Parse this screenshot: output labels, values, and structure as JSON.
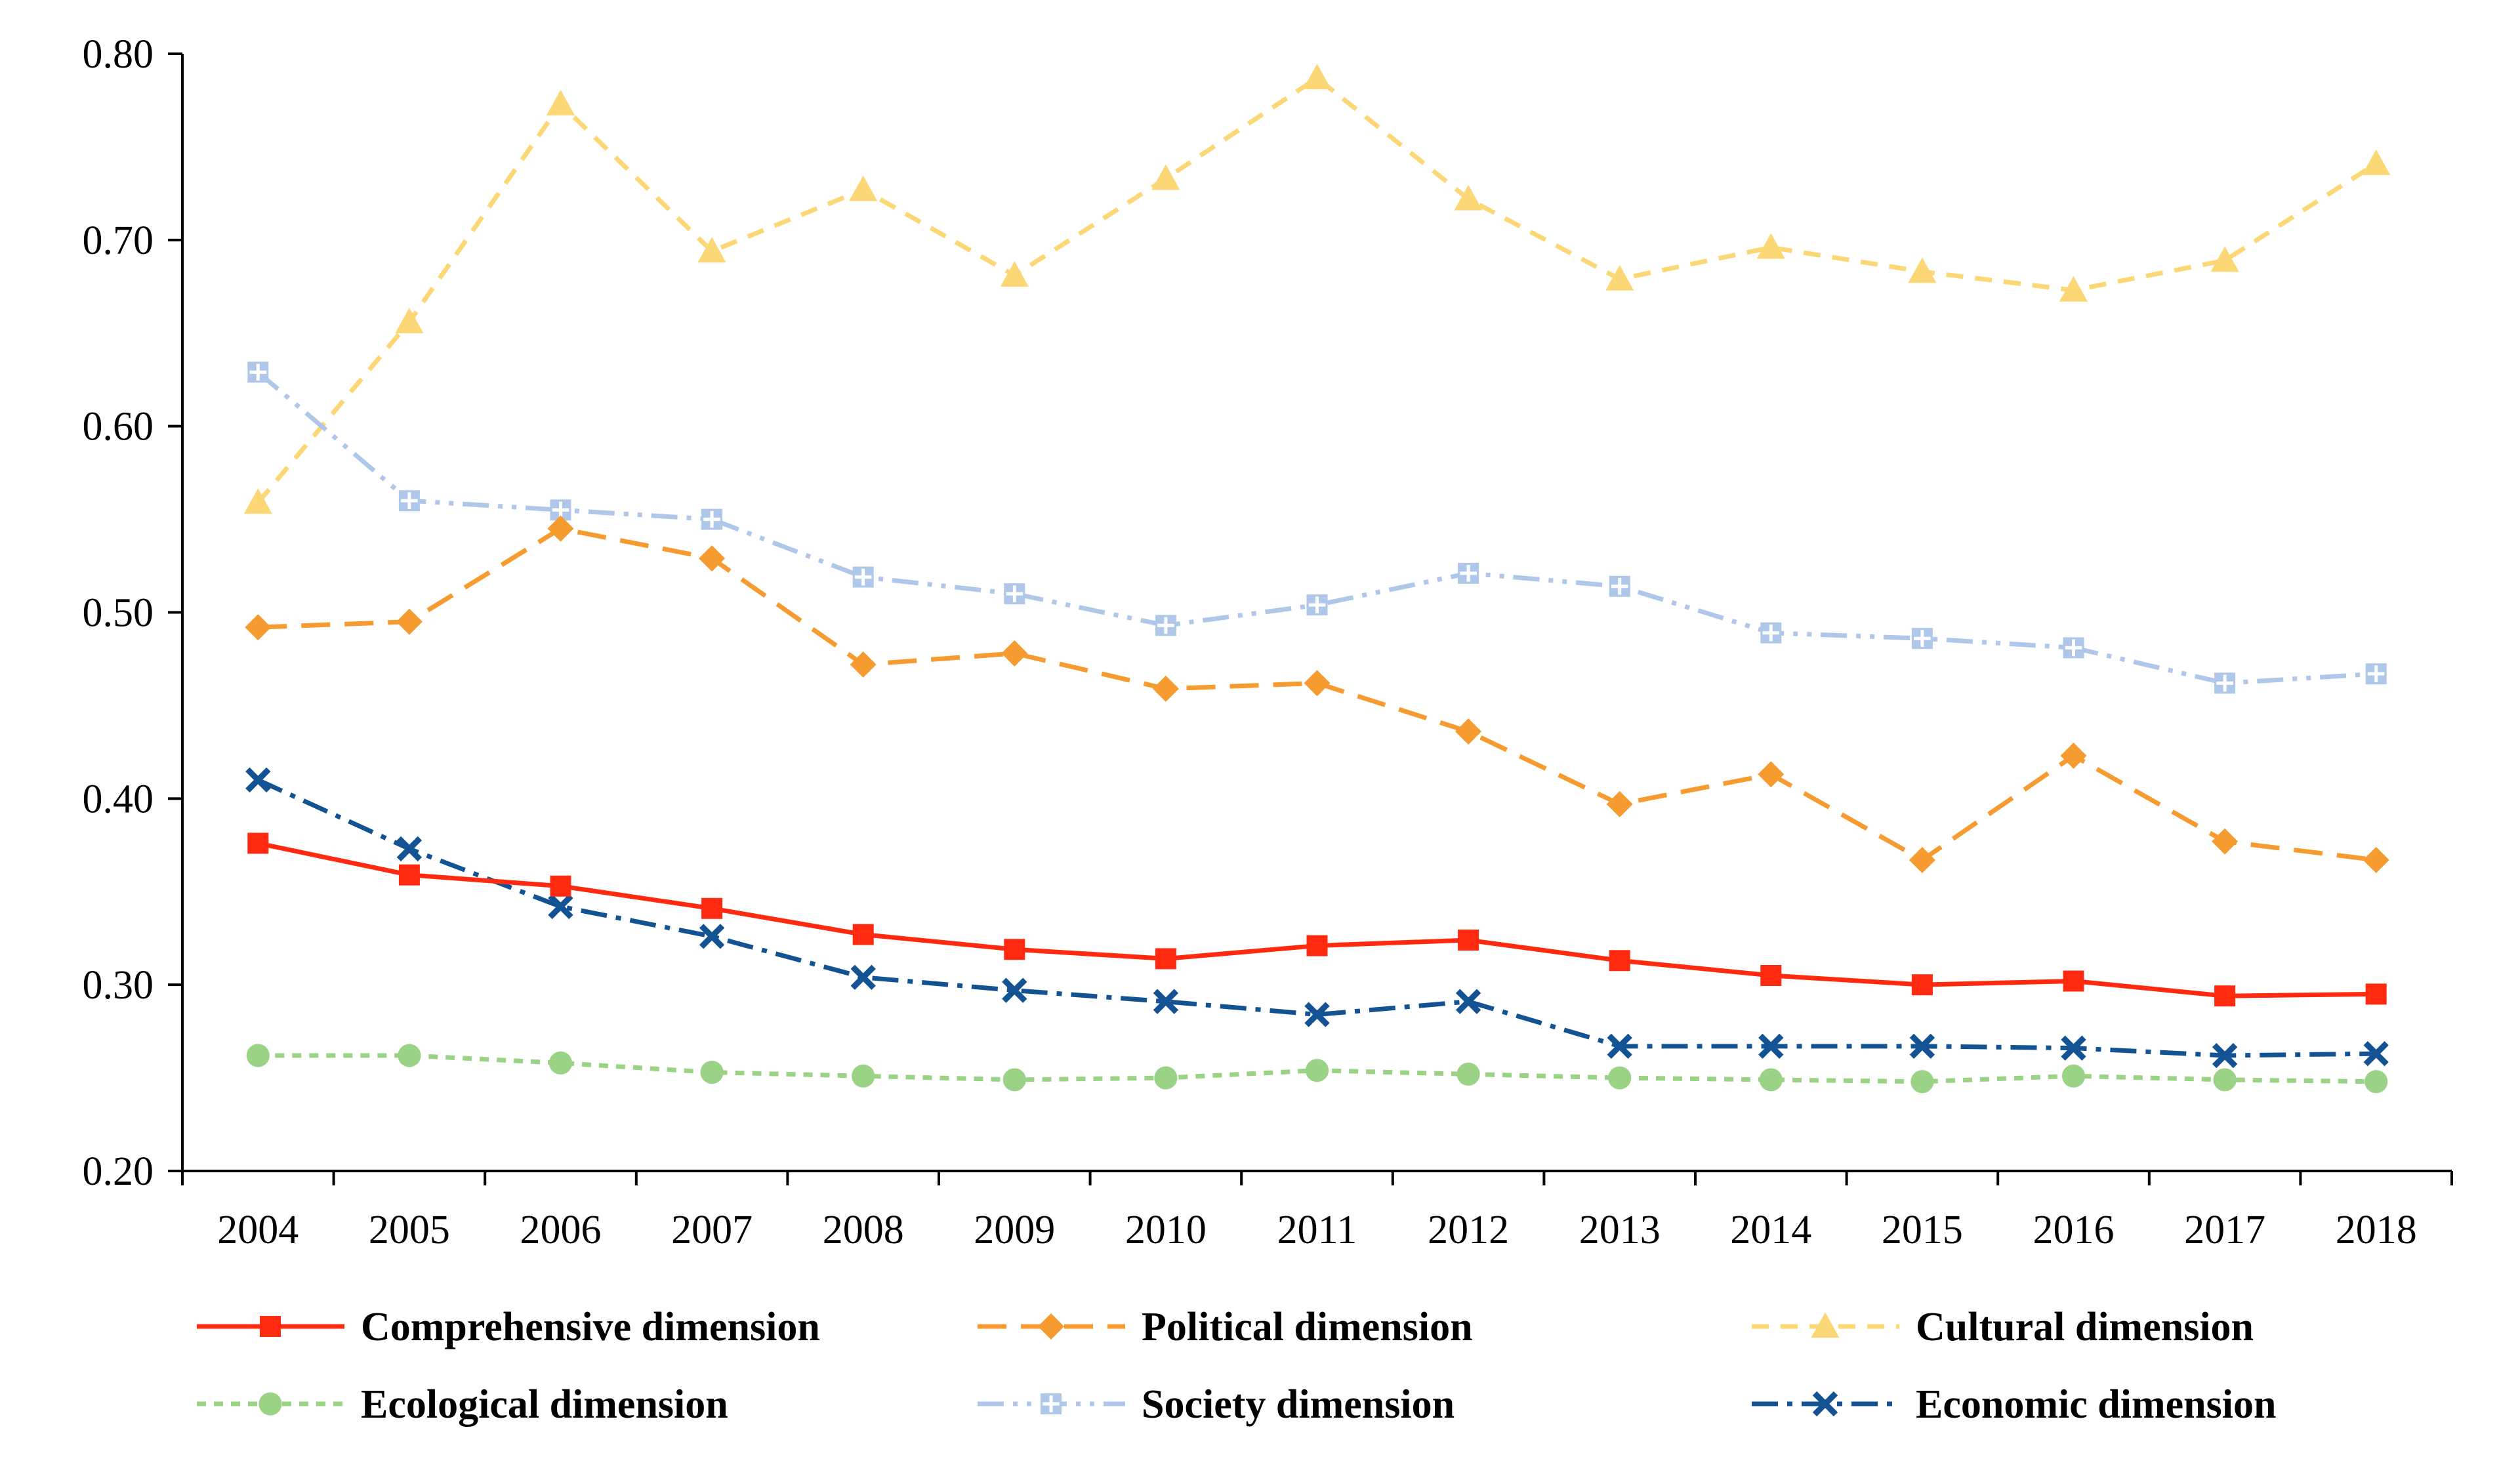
{
  "chart_data": {
    "type": "line",
    "title": "",
    "xlabel": "",
    "ylabel": "",
    "ylim": [
      0.2,
      0.8
    ],
    "yticks": [
      "0.20",
      "0.30",
      "0.40",
      "0.50",
      "0.60",
      "0.70",
      "0.80"
    ],
    "categories": [
      "2004",
      "2005",
      "2006",
      "2007",
      "2008",
      "2009",
      "2010",
      "2011",
      "2012",
      "2013",
      "2014",
      "2015",
      "2016",
      "2017",
      "2018"
    ],
    "legend_position": "bottom",
    "series": [
      {
        "name": "Comprehensive dimension",
        "color": "#FF2A0F",
        "dash": "solid",
        "marker": "square",
        "values": [
          0.376,
          0.359,
          0.353,
          0.341,
          0.327,
          0.319,
          0.314,
          0.321,
          0.324,
          0.313,
          0.305,
          0.3,
          0.302,
          0.294,
          0.295
        ]
      },
      {
        "name": "Political dimension",
        "color": "#F59B30",
        "dash": "long-dash",
        "marker": "diamond",
        "values": [
          0.492,
          0.495,
          0.545,
          0.529,
          0.472,
          0.478,
          0.459,
          0.462,
          0.436,
          0.397,
          0.413,
          0.367,
          0.423,
          0.377,
          0.367
        ]
      },
      {
        "name": "Cultural dimension",
        "color": "#FBD775",
        "dash": "dash",
        "marker": "triangle",
        "values": [
          0.559,
          0.656,
          0.773,
          0.694,
          0.727,
          0.681,
          0.733,
          0.787,
          0.722,
          0.679,
          0.696,
          0.683,
          0.673,
          0.689,
          0.741
        ]
      },
      {
        "name": "Ecological dimension",
        "color": "#9BD386",
        "dash": "short-dash",
        "marker": "circle",
        "values": [
          0.262,
          0.262,
          0.258,
          0.253,
          0.251,
          0.249,
          0.25,
          0.254,
          0.252,
          0.25,
          0.249,
          0.248,
          0.251,
          0.249,
          0.248
        ]
      },
      {
        "name": "Society dimension",
        "color": "#AFC7E9",
        "dash": "dash-dot-dot",
        "marker": "plus",
        "values": [
          0.629,
          0.56,
          0.555,
          0.55,
          0.519,
          0.51,
          0.493,
          0.504,
          0.521,
          0.514,
          0.489,
          0.486,
          0.481,
          0.462,
          0.467
        ]
      },
      {
        "name": "Economic dimension",
        "color": "#145393",
        "dash": "dash-dot",
        "marker": "x",
        "values": [
          0.41,
          0.373,
          0.342,
          0.326,
          0.304,
          0.297,
          0.291,
          0.284,
          0.291,
          0.267,
          0.267,
          0.267,
          0.266,
          0.262,
          0.263
        ]
      }
    ]
  }
}
